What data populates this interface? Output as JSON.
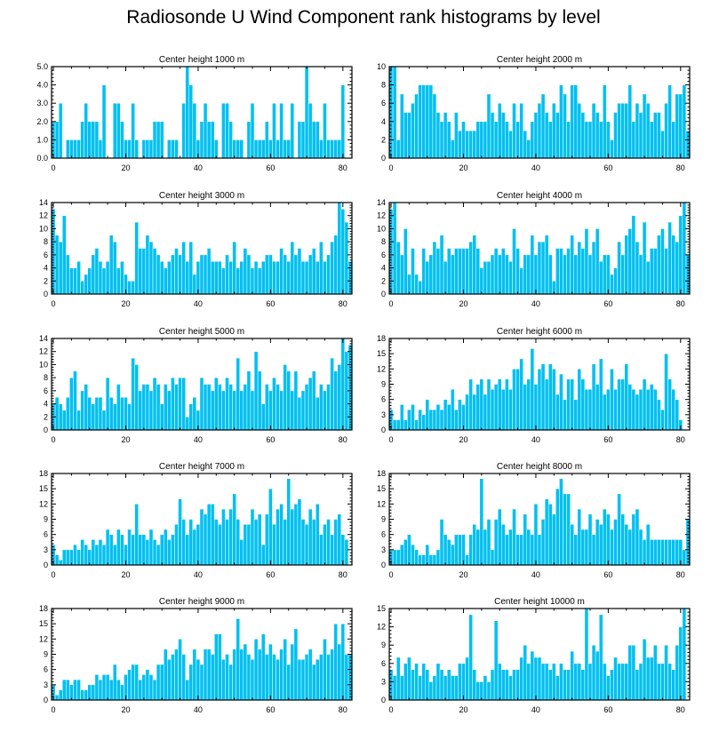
{
  "title": "Radiosonde U Wind Component rank histograms by level",
  "colors": {
    "bar": "#00c0f0",
    "frame": "#000000"
  },
  "chart_data": [
    {
      "type": "bar",
      "title": "Center height 1000 m",
      "ylim": [
        0,
        5
      ],
      "yticks": [
        0,
        1,
        2,
        3,
        4,
        5
      ],
      "ytick_labels": [
        "0.0",
        "1.0",
        "2.0",
        "3.0",
        "4.0",
        "5.0"
      ],
      "xticks": [
        0,
        20,
        40,
        60,
        80
      ],
      "xtick_labels": [
        "0",
        "20",
        "40",
        "60",
        "80"
      ],
      "values": [
        2,
        2,
        3,
        0,
        1,
        1,
        1,
        1,
        2,
        3,
        2,
        2,
        2,
        1,
        4,
        0,
        0,
        3,
        3,
        2,
        1,
        1,
        3,
        1,
        0,
        1,
        1,
        1,
        2,
        2,
        2,
        0,
        1,
        1,
        1,
        0,
        3,
        5,
        4,
        3,
        1,
        2,
        3,
        2,
        2,
        1,
        0,
        3,
        3,
        2,
        1,
        1,
        1,
        0,
        2,
        3,
        1,
        1,
        1,
        2,
        1,
        3,
        1,
        3,
        1,
        1,
        3,
        0,
        2,
        2,
        5,
        3,
        2,
        2,
        1,
        3,
        1,
        1,
        1,
        1,
        4
      ]
    },
    {
      "type": "bar",
      "title": "Center height 2000 m",
      "ylim": [
        0,
        10
      ],
      "yticks": [
        0,
        2,
        4,
        6,
        8,
        10
      ],
      "ytick_labels": [
        "0",
        "2",
        "4",
        "6",
        "8",
        "10"
      ],
      "xticks": [
        0,
        20,
        40,
        60,
        80
      ],
      "xtick_labels": [
        "0",
        "20",
        "40",
        "60",
        "80"
      ],
      "values": [
        10,
        10,
        2,
        7,
        5,
        5,
        6,
        7,
        8,
        8,
        8,
        8,
        7,
        5,
        4,
        5,
        4,
        2,
        5,
        3,
        4,
        3,
        3,
        3,
        4,
        4,
        4,
        7,
        5,
        4,
        6,
        5,
        4,
        3,
        6,
        4,
        6,
        3,
        2,
        4,
        5,
        6,
        7,
        5,
        4,
        6,
        5,
        8,
        7,
        4,
        8,
        8,
        6,
        5,
        4,
        4,
        6,
        5,
        4,
        8,
        4,
        2,
        5,
        6,
        6,
        6,
        8,
        4,
        6,
        5,
        7,
        6,
        4,
        5,
        5,
        3,
        6,
        8,
        4,
        7,
        7,
        8,
        3
      ]
    },
    {
      "type": "bar",
      "title": "Center height 3000 m",
      "ylim": [
        0,
        14
      ],
      "yticks": [
        0,
        2,
        4,
        6,
        8,
        10,
        12,
        14
      ],
      "ytick_labels": [
        "0",
        "2",
        "4",
        "6",
        "8",
        "10",
        "12",
        "14"
      ],
      "xticks": [
        0,
        20,
        40,
        60,
        80
      ],
      "xtick_labels": [
        "0",
        "20",
        "40",
        "60",
        "80"
      ],
      "values": [
        13,
        9,
        8,
        12,
        6,
        4,
        4,
        5,
        2,
        3,
        4,
        6,
        7,
        5,
        4,
        5,
        9,
        8,
        4,
        5,
        3,
        2,
        2,
        11,
        7,
        7,
        9,
        8,
        7,
        6,
        5,
        4,
        5,
        6,
        7,
        6,
        8,
        5,
        8,
        3,
        5,
        6,
        6,
        7,
        5,
        5,
        5,
        4,
        6,
        5,
        8,
        4,
        5,
        7,
        6,
        4,
        5,
        4,
        5,
        6,
        6,
        5,
        5,
        7,
        6,
        5,
        8,
        6,
        7,
        5,
        5,
        6,
        7,
        5,
        8,
        5,
        6,
        8,
        9,
        14,
        13,
        11,
        5
      ]
    },
    {
      "type": "bar",
      "title": "Center height 4000 m",
      "ylim": [
        0,
        14
      ],
      "yticks": [
        0,
        2,
        4,
        6,
        8,
        10,
        12,
        14
      ],
      "ytick_labels": [
        "0",
        "2",
        "4",
        "6",
        "8",
        "10",
        "12",
        "14"
      ],
      "xticks": [
        0,
        20,
        40,
        60,
        80
      ],
      "xtick_labels": [
        "0",
        "20",
        "40",
        "60",
        "80"
      ],
      "values": [
        13,
        14,
        8,
        6,
        10,
        3,
        7,
        3,
        2,
        7,
        5,
        6,
        8,
        7,
        9,
        5,
        7,
        6,
        7,
        7,
        7,
        7,
        8,
        9,
        7,
        4,
        5,
        5,
        6,
        7,
        6,
        7,
        6,
        5,
        10,
        7,
        4,
        6,
        6,
        9,
        6,
        8,
        8,
        9,
        6,
        2,
        7,
        7,
        6,
        7,
        9,
        6,
        8,
        7,
        10,
        6,
        8,
        10,
        5,
        6,
        6,
        3,
        4,
        8,
        6,
        9,
        10,
        12,
        8,
        6,
        11,
        5,
        7,
        7,
        9,
        10,
        7,
        11,
        9,
        8,
        12,
        14,
        6
      ]
    },
    {
      "type": "bar",
      "title": "Center height 5000 m",
      "ylim": [
        0,
        14
      ],
      "yticks": [
        0,
        2,
        4,
        6,
        8,
        10,
        12,
        14
      ],
      "ytick_labels": [
        "0",
        "2",
        "4",
        "6",
        "8",
        "10",
        "12",
        "14"
      ],
      "xticks": [
        0,
        20,
        40,
        60,
        80
      ],
      "xtick_labels": [
        "0",
        "20",
        "40",
        "60",
        "80"
      ],
      "values": [
        4,
        5,
        4,
        3,
        5,
        8,
        9,
        3,
        6,
        7,
        5,
        4,
        5,
        5,
        3,
        8,
        5,
        4,
        7,
        5,
        5,
        4,
        11,
        10,
        6,
        7,
        7,
        6,
        8,
        7,
        4,
        7,
        6,
        8,
        7,
        8,
        8,
        2,
        4,
        5,
        3,
        8,
        7,
        7,
        6,
        8,
        7,
        6,
        8,
        7,
        6,
        11,
        6,
        7,
        9,
        6,
        12,
        9,
        4,
        7,
        6,
        8,
        7,
        6,
        10,
        9,
        6,
        9,
        5,
        6,
        7,
        8,
        9,
        5,
        7,
        6,
        7,
        11,
        9,
        10,
        14,
        12,
        13
      ]
    },
    {
      "type": "bar",
      "title": "Center height 6000 m",
      "ylim": [
        0,
        18
      ],
      "yticks": [
        0,
        3,
        6,
        9,
        12,
        15,
        18
      ],
      "ytick_labels": [
        "0",
        "3",
        "6",
        "9",
        "12",
        "15",
        "18"
      ],
      "xticks": [
        0,
        20,
        40,
        60,
        80
      ],
      "xtick_labels": [
        "0",
        "20",
        "40",
        "60",
        "80"
      ],
      "values": [
        4,
        2,
        2,
        5,
        2,
        4,
        5,
        2,
        4,
        3,
        6,
        4,
        4,
        5,
        4,
        6,
        5,
        8,
        4,
        6,
        5,
        7,
        10,
        7,
        9,
        10,
        7,
        10,
        8,
        9,
        10,
        8,
        10,
        8,
        12,
        12,
        14,
        9,
        10,
        16,
        9,
        12,
        13,
        10,
        13,
        12,
        7,
        11,
        6,
        10,
        10,
        6,
        12,
        10,
        8,
        8,
        13,
        9,
        14,
        7,
        8,
        12,
        8,
        10,
        10,
        13,
        9,
        8,
        7,
        8,
        10,
        8,
        9,
        8,
        6,
        4,
        15,
        10,
        8,
        6,
        2
      ]
    },
    {
      "type": "bar",
      "title": "Center height 7000 m",
      "ylim": [
        0,
        18
      ],
      "yticks": [
        0,
        3,
        6,
        9,
        12,
        15,
        18
      ],
      "ytick_labels": [
        "0",
        "3",
        "6",
        "9",
        "12",
        "15",
        "18"
      ],
      "xticks": [
        0,
        20,
        40,
        60,
        80
      ],
      "xtick_labels": [
        "0",
        "20",
        "40",
        "60",
        "80"
      ],
      "values": [
        4,
        2,
        1,
        3,
        3,
        3,
        4,
        3,
        5,
        4,
        3,
        5,
        4,
        5,
        4,
        7,
        6,
        4,
        7,
        6,
        4,
        7,
        6,
        12,
        6,
        6,
        5,
        7,
        5,
        4,
        6,
        7,
        5,
        6,
        8,
        13,
        9,
        6,
        9,
        7,
        8,
        11,
        10,
        12,
        12,
        9,
        8,
        11,
        9,
        11,
        14,
        9,
        5,
        8,
        8,
        11,
        9,
        10,
        4,
        10,
        15,
        8,
        11,
        12,
        9,
        17,
        11,
        12,
        13,
        9,
        8,
        11,
        9,
        12,
        6,
        8,
        9,
        6,
        9,
        10,
        6,
        5
      ]
    },
    {
      "type": "bar",
      "title": "Center height 8000 m",
      "ylim": [
        0,
        18
      ],
      "yticks": [
        0,
        3,
        6,
        9,
        12,
        15,
        18
      ],
      "ytick_labels": [
        "0",
        "3",
        "6",
        "9",
        "12",
        "15",
        "18"
      ],
      "xticks": [
        0,
        20,
        40,
        60,
        80
      ],
      "xtick_labels": [
        "0",
        "20",
        "40",
        "60",
        "80"
      ],
      "values": [
        3,
        3,
        3,
        4,
        5,
        6,
        4,
        3,
        2,
        2,
        4,
        2,
        2,
        3,
        9,
        6,
        5,
        4,
        6,
        6,
        6,
        2,
        6,
        8,
        7,
        17,
        7,
        9,
        3,
        9,
        11,
        8,
        6,
        7,
        11,
        6,
        6,
        10,
        7,
        6,
        12,
        6,
        9,
        13,
        12,
        10,
        15,
        17,
        14,
        14,
        8,
        6,
        11,
        7,
        7,
        10,
        6,
        9,
        8,
        11,
        10,
        7,
        9,
        14,
        10,
        8,
        7,
        10,
        11,
        7,
        5,
        8,
        5,
        5,
        5,
        5,
        5,
        5,
        5,
        5,
        5,
        3,
        9
      ]
    },
    {
      "type": "bar",
      "title": "Center height 9000 m",
      "ylim": [
        0,
        18
      ],
      "yticks": [
        0,
        3,
        6,
        9,
        12,
        15,
        18
      ],
      "ytick_labels": [
        "0",
        "3",
        "6",
        "9",
        "12",
        "15",
        "18"
      ],
      "xticks": [
        0,
        20,
        40,
        60,
        80
      ],
      "xtick_labels": [
        "0",
        "20",
        "40",
        "60",
        "80"
      ],
      "values": [
        3,
        1,
        2,
        4,
        4,
        3,
        4,
        4,
        2,
        2,
        3,
        3,
        5,
        4,
        5,
        5,
        4,
        7,
        4,
        3,
        5,
        6,
        7,
        7,
        4,
        5,
        6,
        5,
        4,
        7,
        7,
        10,
        8,
        9,
        10,
        12,
        9,
        4,
        7,
        10,
        8,
        7,
        10,
        10,
        9,
        13,
        13,
        8,
        9,
        7,
        10,
        16,
        10,
        11,
        9,
        8,
        12,
        10,
        13,
        9,
        11,
        9,
        8,
        10,
        12,
        7,
        11,
        14,
        8,
        8,
        9,
        10,
        7,
        8,
        9,
        12,
        9,
        10,
        15,
        11,
        15,
        9,
        9
      ]
    },
    {
      "type": "bar",
      "title": "Center height 10000 m",
      "ylim": [
        0,
        15
      ],
      "yticks": [
        0,
        3,
        6,
        9,
        12,
        15
      ],
      "ytick_labels": [
        "0",
        "3",
        "6",
        "9",
        "12",
        "15"
      ],
      "xticks": [
        0,
        20,
        40,
        60,
        80
      ],
      "xtick_labels": [
        "0",
        "20",
        "40",
        "60",
        "80"
      ],
      "values": [
        5,
        4,
        7,
        4,
        6,
        7,
        5,
        6,
        4,
        6,
        5,
        3,
        4,
        6,
        5,
        4,
        5,
        4,
        4,
        6,
        6,
        7,
        14,
        5,
        3,
        3,
        4,
        3,
        5,
        13,
        6,
        5,
        5,
        4,
        5,
        5,
        7,
        9,
        6,
        8,
        7,
        7,
        6,
        6,
        5,
        6,
        4,
        6,
        5,
        5,
        8,
        6,
        6,
        5,
        15,
        6,
        9,
        8,
        14,
        6,
        4,
        5,
        7,
        6,
        6,
        6,
        9,
        9,
        5,
        6,
        10,
        7,
        7,
        9,
        6,
        6,
        9,
        6,
        5,
        9,
        12,
        15
      ]
    }
  ]
}
